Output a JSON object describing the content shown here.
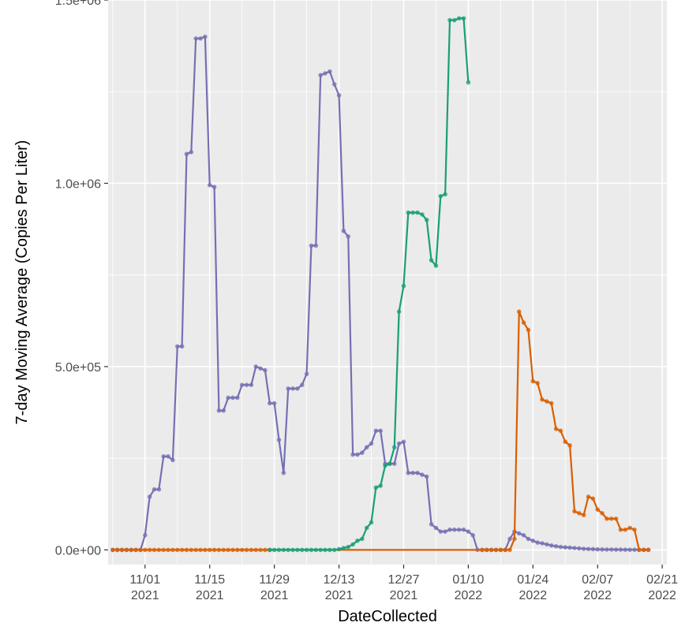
{
  "chart_data": {
    "type": "line",
    "title": "",
    "xlabel": "DateCollected",
    "ylabel": "7-day Moving Average (Copies Per Liter)",
    "xlim": [
      "2021-10-24",
      "2022-02-22"
    ],
    "ylim": [
      -40000,
      1500000
    ],
    "grid": true,
    "x_ticks": [
      {
        "date": "2021-11-01",
        "line1": "11/01",
        "line2": "2021"
      },
      {
        "date": "2021-11-15",
        "line1": "11/15",
        "line2": "2021"
      },
      {
        "date": "2021-11-29",
        "line1": "11/29",
        "line2": "2021"
      },
      {
        "date": "2021-12-13",
        "line1": "12/13",
        "line2": "2021"
      },
      {
        "date": "2021-12-27",
        "line1": "12/27",
        "line2": "2021"
      },
      {
        "date": "2022-01-10",
        "line1": "01/10",
        "line2": "2022"
      },
      {
        "date": "2022-01-24",
        "line1": "01/24",
        "line2": "2022"
      },
      {
        "date": "2022-02-07",
        "line1": "02/07",
        "line2": "2022"
      },
      {
        "date": "2022-02-21",
        "line1": "02/21",
        "line2": "2022"
      }
    ],
    "y_ticks": [
      {
        "value": 0,
        "label": "0.0e+00"
      },
      {
        "value": 500000,
        "label": "5.0e+05"
      },
      {
        "value": 1000000,
        "label": "1.0e+06"
      },
      {
        "value": 1500000,
        "label": "1.5e+06"
      }
    ],
    "series": [
      {
        "color": "#7570b3",
        "x": [
          "2021-10-25",
          "2021-10-26",
          "2021-10-27",
          "2021-10-28",
          "2021-10-29",
          "2021-10-30",
          "2021-10-31",
          "2021-11-01",
          "2021-11-02",
          "2021-11-03",
          "2021-11-04",
          "2021-11-05",
          "2021-11-06",
          "2021-11-07",
          "2021-11-08",
          "2021-11-09",
          "2021-11-10",
          "2021-11-11",
          "2021-11-12",
          "2021-11-13",
          "2021-11-14",
          "2021-11-15",
          "2021-11-16",
          "2021-11-17",
          "2021-11-18",
          "2021-11-19",
          "2021-11-20",
          "2021-11-21",
          "2021-11-22",
          "2021-11-23",
          "2021-11-24",
          "2021-11-25",
          "2021-11-26",
          "2021-11-27",
          "2021-11-28",
          "2021-11-29",
          "2021-11-30",
          "2021-12-01",
          "2021-12-02",
          "2021-12-03",
          "2021-12-04",
          "2021-12-05",
          "2021-12-06",
          "2021-12-07",
          "2021-12-08",
          "2021-12-09",
          "2021-12-10",
          "2021-12-11",
          "2021-12-12",
          "2021-12-13",
          "2021-12-14",
          "2021-12-15",
          "2021-12-16",
          "2021-12-17",
          "2021-12-18",
          "2021-12-19",
          "2021-12-20",
          "2021-12-21",
          "2021-12-22",
          "2021-12-23",
          "2021-12-24",
          "2021-12-25",
          "2021-12-26",
          "2021-12-27",
          "2021-12-28",
          "2021-12-29",
          "2021-12-30",
          "2021-12-31",
          "2022-01-01",
          "2022-01-02",
          "2022-01-03",
          "2022-01-04",
          "2022-01-05",
          "2022-01-06",
          "2022-01-07",
          "2022-01-08",
          "2022-01-09",
          "2022-01-10",
          "2022-01-11",
          "2022-01-12",
          "2022-01-13",
          "2022-01-14",
          "2022-01-15",
          "2022-01-16",
          "2022-01-17",
          "2022-01-18",
          "2022-01-19",
          "2022-01-20",
          "2022-01-21",
          "2022-01-22",
          "2022-01-23",
          "2022-01-24",
          "2022-01-25",
          "2022-01-26",
          "2022-01-27",
          "2022-01-28",
          "2022-01-29",
          "2022-01-30",
          "2022-01-31",
          "2022-02-01",
          "2022-02-02",
          "2022-02-03",
          "2022-02-04",
          "2022-02-05",
          "2022-02-06",
          "2022-02-07",
          "2022-02-08",
          "2022-02-09",
          "2022-02-10",
          "2022-02-11",
          "2022-02-12",
          "2022-02-13",
          "2022-02-14",
          "2022-02-15",
          "2022-02-16",
          "2022-02-17",
          "2022-02-18"
        ],
        "values": [
          0,
          0,
          0,
          0,
          0,
          0,
          0,
          40000,
          145000,
          165000,
          165000,
          255000,
          255000,
          245000,
          555000,
          555000,
          1080000,
          1085000,
          1395000,
          1395000,
          1400000,
          995000,
          990000,
          380000,
          380000,
          415000,
          415000,
          415000,
          450000,
          450000,
          450000,
          500000,
          495000,
          490000,
          400000,
          400000,
          300000,
          210000,
          440000,
          440000,
          440000,
          450000,
          480000,
          830000,
          830000,
          1295000,
          1300000,
          1305000,
          1270000,
          1240000,
          870000,
          855000,
          260000,
          260000,
          265000,
          280000,
          290000,
          325000,
          325000,
          235000,
          235000,
          235000,
          290000,
          295000,
          210000,
          210000,
          210000,
          205000,
          200000,
          70000,
          60000,
          50000,
          50000,
          55000,
          55000,
          55000,
          55000,
          50000,
          40000,
          0,
          0,
          0,
          0,
          0,
          0,
          0,
          30000,
          50000,
          45000,
          40000,
          30000,
          25000,
          20000,
          18000,
          15000,
          12000,
          10000,
          8000,
          7000,
          6000,
          5000,
          4000,
          3000,
          2500,
          2000,
          1500,
          1200,
          1000,
          1000,
          800,
          700,
          600,
          500,
          500,
          400,
          300,
          300
        ]
      },
      {
        "color": "#d95f02",
        "x": [
          "2021-10-25",
          "2021-10-26",
          "2021-10-27",
          "2021-10-28",
          "2021-10-29",
          "2021-10-30",
          "2021-10-31",
          "2021-11-01",
          "2021-11-02",
          "2021-11-03",
          "2021-11-04",
          "2021-11-05",
          "2021-11-06",
          "2021-11-07",
          "2021-11-08",
          "2021-11-09",
          "2021-11-10",
          "2021-11-11",
          "2021-11-12",
          "2021-11-13",
          "2021-11-14",
          "2021-11-15",
          "2021-11-16",
          "2021-11-17",
          "2021-11-18",
          "2021-11-19",
          "2021-11-20",
          "2021-11-21",
          "2021-11-22",
          "2021-11-23",
          "2021-11-24",
          "2021-11-25",
          "2021-11-26",
          "2021-11-27",
          "2021-11-28",
          "2022-01-13",
          "2022-01-14",
          "2022-01-15",
          "2022-01-16",
          "2022-01-17",
          "2022-01-18",
          "2022-01-19",
          "2022-01-20",
          "2022-01-21",
          "2022-01-22",
          "2022-01-23",
          "2022-01-24",
          "2022-01-25",
          "2022-01-26",
          "2022-01-27",
          "2022-01-28",
          "2022-01-29",
          "2022-01-30",
          "2022-01-31",
          "2022-02-01",
          "2022-02-02",
          "2022-02-03",
          "2022-02-04",
          "2022-02-05",
          "2022-02-06",
          "2022-02-07",
          "2022-02-08",
          "2022-02-09",
          "2022-02-10",
          "2022-02-11",
          "2022-02-12",
          "2022-02-13",
          "2022-02-14",
          "2022-02-15",
          "2022-02-16",
          "2022-02-17",
          "2022-02-18"
        ],
        "values": [
          0,
          0,
          0,
          0,
          0,
          0,
          0,
          0,
          0,
          0,
          0,
          0,
          0,
          0,
          0,
          0,
          0,
          0,
          0,
          0,
          0,
          0,
          0,
          0,
          0,
          0,
          0,
          0,
          0,
          0,
          0,
          0,
          0,
          0,
          0,
          0,
          0,
          0,
          0,
          0,
          0,
          0,
          30000,
          650000,
          620000,
          600000,
          460000,
          455000,
          410000,
          405000,
          400000,
          330000,
          325000,
          295000,
          285000,
          105000,
          100000,
          95000,
          145000,
          140000,
          110000,
          100000,
          85000,
          85000,
          85000,
          55000,
          55000,
          60000,
          55000,
          0,
          0,
          0
        ]
      },
      {
        "color": "#1b9e77",
        "x": [
          "2021-11-28",
          "2021-11-29",
          "2021-11-30",
          "2021-12-01",
          "2021-12-02",
          "2021-12-03",
          "2021-12-04",
          "2021-12-05",
          "2021-12-06",
          "2021-12-07",
          "2021-12-08",
          "2021-12-09",
          "2021-12-10",
          "2021-12-11",
          "2021-12-12",
          "2021-12-13",
          "2021-12-14",
          "2021-12-15",
          "2021-12-16",
          "2021-12-17",
          "2021-12-18",
          "2021-12-19",
          "2021-12-20",
          "2021-12-21",
          "2021-12-22",
          "2021-12-23",
          "2021-12-24",
          "2021-12-25",
          "2021-12-26",
          "2021-12-27",
          "2021-12-28",
          "2021-12-29",
          "2021-12-30",
          "2021-12-31",
          "2022-01-01",
          "2022-01-02",
          "2022-01-03",
          "2022-01-04",
          "2022-01-05",
          "2022-01-06",
          "2022-01-07",
          "2022-01-08",
          "2022-01-09",
          "2022-01-10"
        ],
        "values": [
          0,
          0,
          0,
          0,
          0,
          0,
          0,
          0,
          0,
          0,
          0,
          0,
          0,
          0,
          0,
          2000,
          5000,
          8000,
          15000,
          25000,
          30000,
          60000,
          75000,
          170000,
          175000,
          230000,
          235000,
          280000,
          650000,
          720000,
          920000,
          920000,
          920000,
          915000,
          900000,
          790000,
          775000,
          965000,
          970000,
          1445000,
          1445000,
          1450000,
          1450000,
          1275000
        ]
      }
    ]
  }
}
